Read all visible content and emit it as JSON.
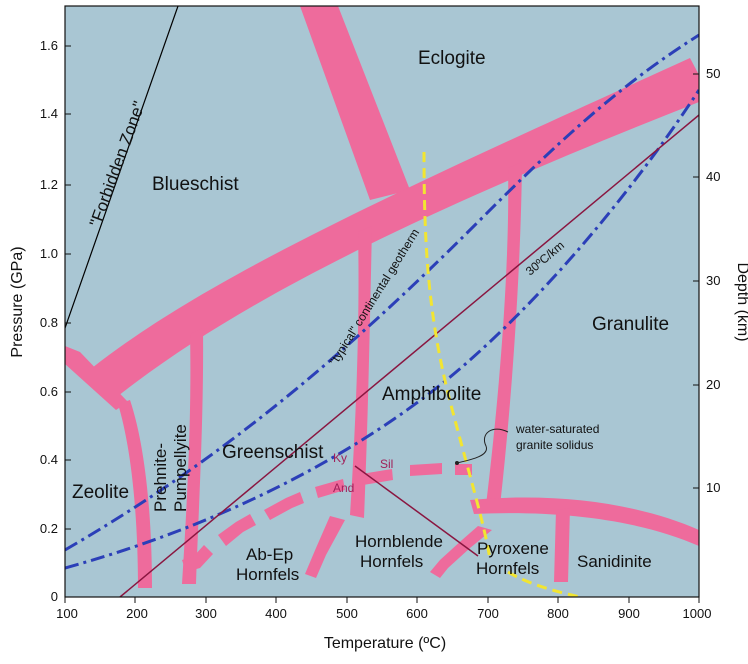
{
  "axes": {
    "xlabel": "Temperature (ºC)",
    "ylabel_left": "Pressure (GPa)",
    "ylabel_right": "Depth (km)",
    "x_ticks": [
      "100",
      "200",
      "300",
      "400",
      "500",
      "600",
      "700",
      "800",
      "900",
      "1000"
    ],
    "y_left_ticks": [
      "0",
      "0.2",
      "0.4",
      "0.6",
      "0.8",
      "1.0",
      "1.2",
      "1.4",
      "1.6"
    ],
    "y_right_ticks": [
      "10",
      "20",
      "30",
      "40",
      "50"
    ]
  },
  "facies": {
    "eclogite": "Eclogite",
    "blueschist": "Blueschist",
    "granulite": "Granulite",
    "amphibolite": "Amphibolite",
    "greenschist": "Greenschist",
    "zeolite": "Zeolite",
    "prehnite_1": "Prehnite-",
    "prehnite_2": "Pumpellyite",
    "abep_1": "Ab-Ep",
    "abep_2": "Hornfels",
    "hornblende_1": "Hornblende",
    "hornblende_2": "Hornfels",
    "pyroxene_1": "Pyroxene",
    "pyroxene_2": "Hornfels",
    "sanidinite": "Sanidinite"
  },
  "annotations": {
    "forbidden_zone": "\"Forbidden Zone\"",
    "typical_geotherm": "\"typical\" continental geotherm",
    "geotherm_30": "30ºC/km",
    "solidus_1": "water-saturated",
    "solidus_2": "granite solidus",
    "ky": "Ky",
    "sil": "Sil",
    "and": "And"
  },
  "colors": {
    "background": "#a9c6d3",
    "facies_boundary": "#ee6b9c",
    "geotherm": "#2b3fb8",
    "solidus": "#f2e531",
    "aluminosilicate": "#8a1640"
  }
}
